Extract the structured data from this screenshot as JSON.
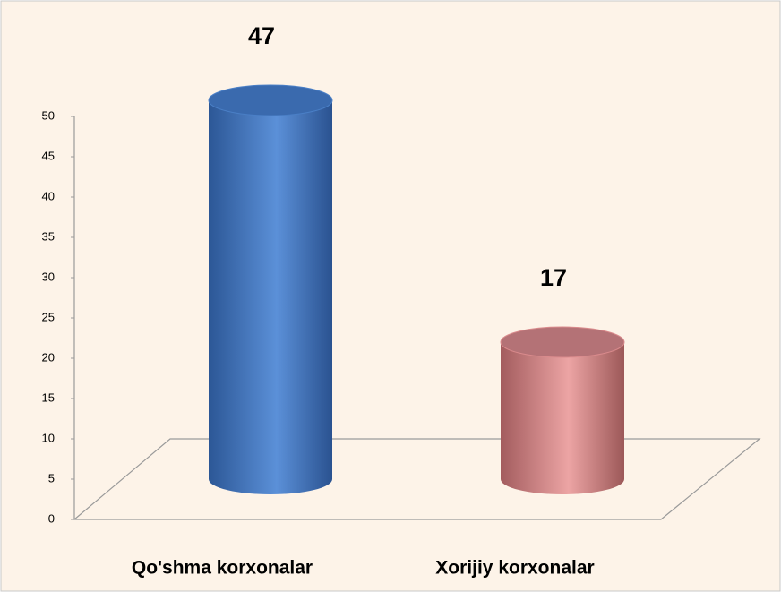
{
  "chart_data": {
    "type": "bar",
    "categories": [
      "Qo'shma korxonalar",
      "Xorijiy korxonalar"
    ],
    "values": [
      47,
      17
    ],
    "colors": [
      "#4a7fc6",
      "#d98a8c"
    ],
    "ylim": [
      0,
      50
    ],
    "yticks": [
      0,
      5,
      10,
      15,
      20,
      25,
      30,
      35,
      40,
      45,
      50
    ],
    "grid": false
  }
}
